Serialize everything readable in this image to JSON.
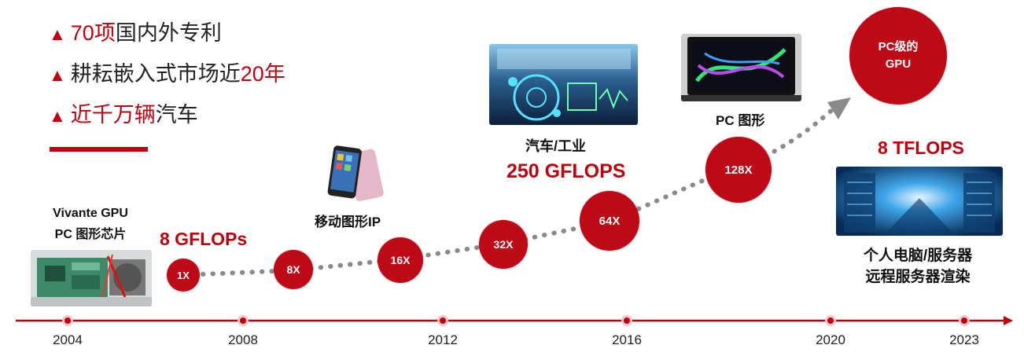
{
  "bullets": [
    {
      "red": "70项",
      "black": "国内外专利",
      "after": ""
    },
    {
      "red": "",
      "black": "耕耘嵌入式市场近",
      "after": "20年"
    },
    {
      "red": "近千万辆",
      "black": "汽车",
      "after": ""
    }
  ],
  "bullet_marker": "▲",
  "milestones": {
    "vivante": {
      "line1": "Vivante GPU",
      "line2": "PC 图形芯片"
    },
    "gflops_8": "8 GFLOPs",
    "mobile": "移动图形IP",
    "auto": "汽车/工业",
    "gflops_250": "250 GFLOPS",
    "pc_graphics": "PC 图形",
    "tflops_8": "8 TFLOPS",
    "server_line1": "个人电脑/服务器",
    "server_line2": "远程服务器渲染"
  },
  "circles": {
    "x1": "1X",
    "x8": "8X",
    "x16": "16X",
    "x32": "32X",
    "x64": "64X",
    "x128": "128X",
    "pc_gpu_line1": "PC级的",
    "pc_gpu_line2": "GPU"
  },
  "years": [
    "2004",
    "2008",
    "2012",
    "2016",
    "2020",
    "2023"
  ],
  "colors": {
    "accent": "#c0000c",
    "dots": "#888888",
    "axis": "#c0000c"
  }
}
